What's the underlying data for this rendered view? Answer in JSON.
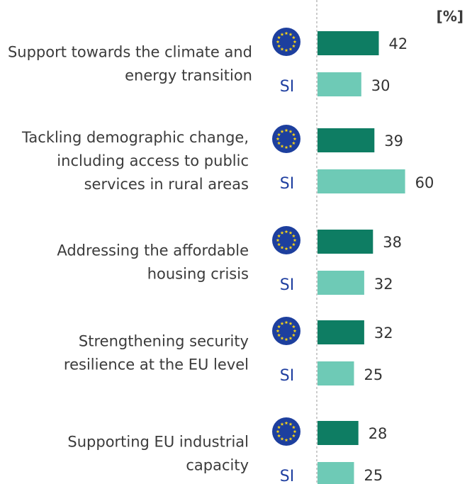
{
  "chart_data": {
    "type": "bar",
    "orientation": "horizontal",
    "unit_label": "[%]",
    "categories": [
      "Support towards the climate and energy transition",
      "Tackling demographic change, including access to public services in rural areas",
      "Addressing the affordable housing crisis",
      "Strengthening security resilience at the EU level",
      "Supporting EU industrial capacity"
    ],
    "category_lines": [
      [
        "Support towards the climate and",
        "energy transition"
      ],
      [
        "Tackling demographic change,",
        "including access to public",
        "services in rural areas"
      ],
      [
        "Addressing the affordable",
        "housing crisis"
      ],
      [
        "Strengthening security",
        "resilience at the EU level"
      ],
      [
        "Supporting EU industrial",
        "capacity"
      ]
    ],
    "series": [
      {
        "label_icon": "eu-flag-icon",
        "color": "#0e7d63",
        "values": [
          42,
          39,
          38,
          32,
          28
        ]
      },
      {
        "label": "SI",
        "color": "#6ecab6",
        "values": [
          30,
          60,
          32,
          25,
          25
        ]
      }
    ],
    "legend": "none",
    "grid": false
  },
  "colors": {
    "eu_bar": "#0e7d63",
    "si_bar": "#6ecab6",
    "si_text": "#1f3fa0",
    "flag_blue": "#1d3f9e",
    "flag_stars": "#f7d315",
    "axis_line": "#999999"
  }
}
